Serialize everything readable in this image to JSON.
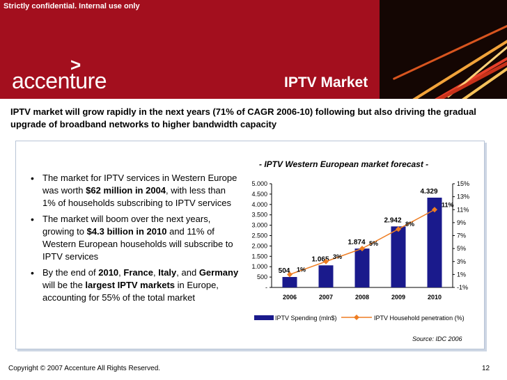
{
  "header": {
    "confidential": "Strictly confidential. Internal use only",
    "logo": "accenture",
    "logo_mark": ">",
    "title": "IPTV Market"
  },
  "subtitle": "IPTV market will grow rapidly in the next years (71% of CAGR 2006-10) following but also driving the gradual upgrade of broadband networks to higher bandwidth capacity",
  "bullets": [
    {
      "a": "The market for IPTV services in Western Europe was worth ",
      "b": "$62 million in 2004",
      "c": ", with less than 1% of households subscribing to IPTV services"
    },
    {
      "a": "The market will boom over the next years, growing to ",
      "b": "$4.3 billion in 2010",
      "c": " and 11% of Western European households will subscribe to IPTV services"
    },
    {
      "a": "By the end of ",
      "b1": "2010",
      "s1": ", ",
      "b2": "France",
      "s2": ", ",
      "b3": "Italy",
      "s3": ", and ",
      "b4": "Germany",
      "s4": " will be the ",
      "b5": "largest IPTV markets",
      "c": " in Europe, accounting for 55% of the total market"
    }
  ],
  "chart_data": {
    "type": "bar",
    "title": "- IPTV Western European market forecast -",
    "categories": [
      "2006",
      "2007",
      "2008",
      "2009",
      "2010"
    ],
    "series": [
      {
        "name": "IPTV Spending (mln$)",
        "kind": "bar",
        "axis": "left",
        "values": [
          504,
          1065,
          1874,
          2942,
          4329
        ],
        "labels": [
          "504",
          "1.065",
          "1.874",
          "2.942",
          "4.329"
        ],
        "color": "#1a1a8c"
      },
      {
        "name": "IPTV Household penetration (%)",
        "kind": "line",
        "axis": "right",
        "values": [
          1,
          3,
          5,
          8,
          11
        ],
        "labels": [
          "1%",
          "3%",
          "5%",
          "8%",
          "11%"
        ],
        "color": "#ee7d22"
      }
    ],
    "left_axis": {
      "ylim": [
        0,
        5000
      ],
      "ticks": [
        0,
        500,
        1000,
        1500,
        2000,
        2500,
        3000,
        3500,
        4000,
        4500,
        5000
      ],
      "tick_labels": [
        "-",
        "500",
        "1.000",
        "1.500",
        "2.000",
        "2.500",
        "3.000",
        "3.500",
        "4.000",
        "4.500",
        "5.000"
      ]
    },
    "right_axis": {
      "ylim": [
        -1,
        15
      ],
      "ticks": [
        -1,
        1,
        3,
        5,
        7,
        9,
        11,
        13,
        15
      ],
      "tick_labels": [
        "-1%",
        "1%",
        "3%",
        "5%",
        "7%",
        "9%",
        "11%",
        "13%",
        "15%"
      ]
    },
    "legend": {
      "position": "bottom"
    }
  },
  "source": "Source: IDC 2006",
  "footer": {
    "copyright": "Copyright © 2007 Accenture All Rights Reserved.",
    "page": "12"
  }
}
